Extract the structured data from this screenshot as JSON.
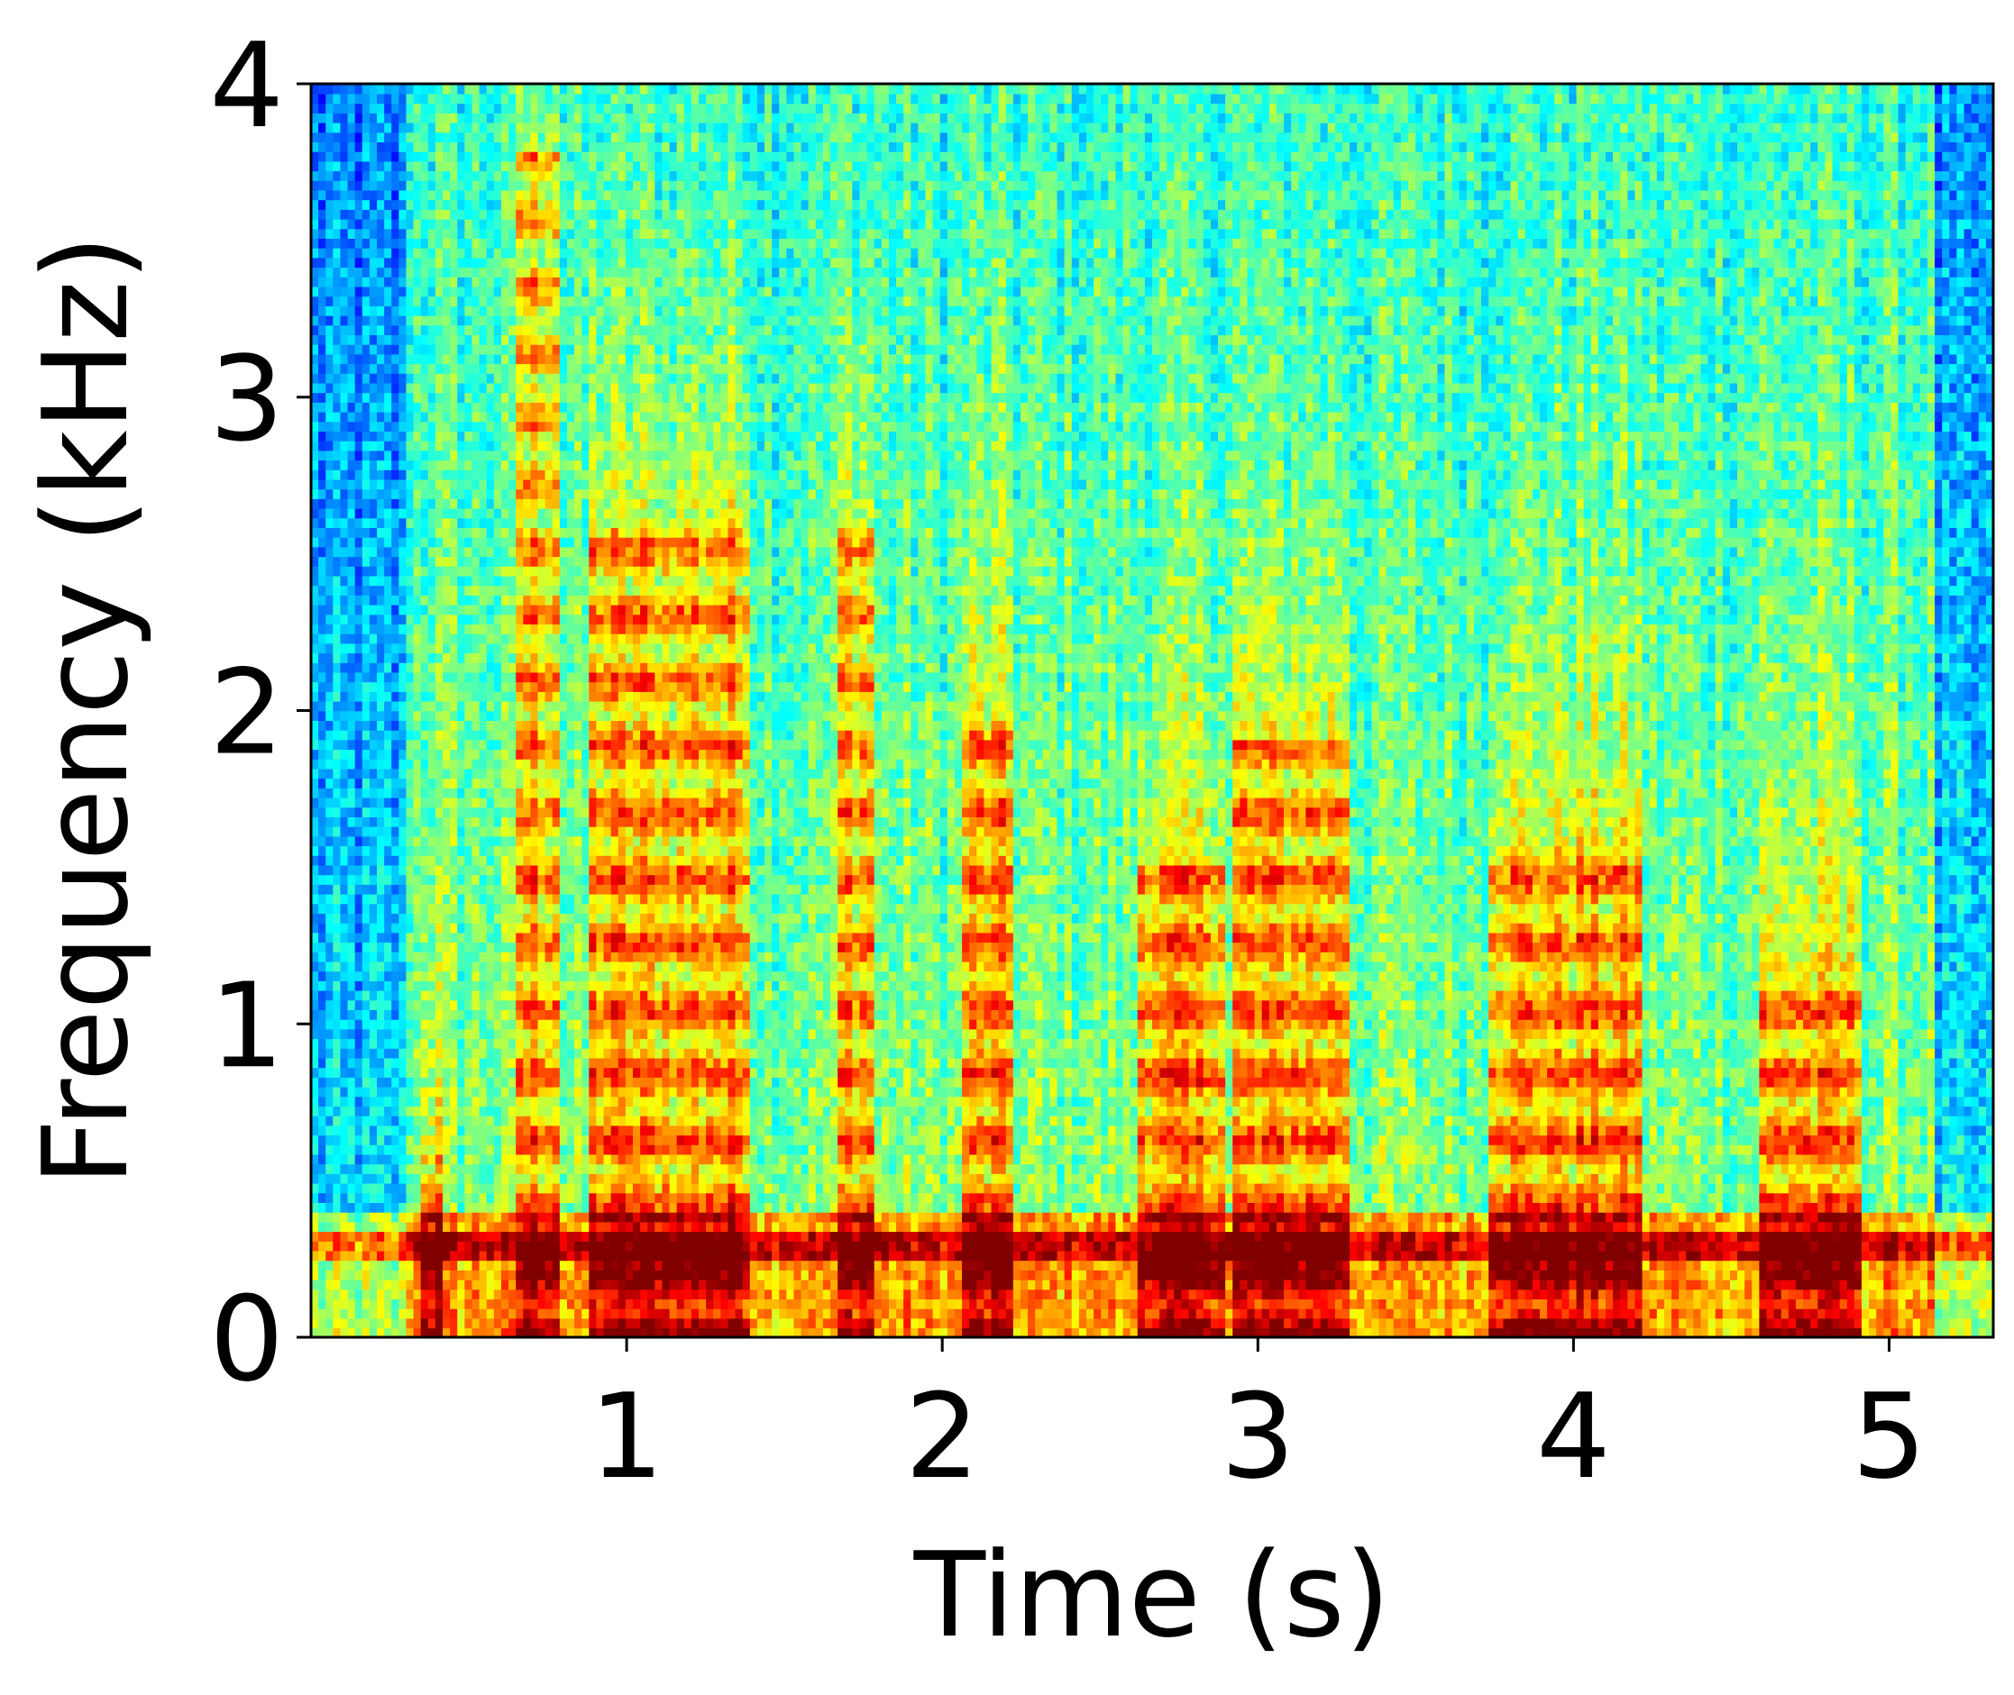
{
  "chart_data": {
    "type": "heatmap",
    "subtype": "spectrogram",
    "xlabel": "Time (s)",
    "ylabel": "Frequency (kHz)",
    "xlim": [
      0,
      5.33
    ],
    "ylim": [
      0,
      4
    ],
    "xticks": [
      1,
      2,
      3,
      4,
      5
    ],
    "yticks": [
      0,
      1,
      2,
      3,
      4
    ],
    "colormap": "jet",
    "grid": false,
    "legend": "none",
    "harmonic_band_khz": 0.3,
    "high_energy_segments": [
      {
        "start": 0.35,
        "end": 0.42,
        "max_khz": 0.6
      },
      {
        "start": 0.66,
        "end": 0.78,
        "max_khz": 3.8
      },
      {
        "start": 0.88,
        "end": 1.4,
        "max_khz": 2.6
      },
      {
        "start": 1.68,
        "end": 1.78,
        "max_khz": 2.6
      },
      {
        "start": 2.06,
        "end": 2.22,
        "max_khz": 2.0
      },
      {
        "start": 2.62,
        "end": 2.9,
        "max_khz": 1.5
      },
      {
        "start": 2.92,
        "end": 3.3,
        "max_khz": 1.9
      },
      {
        "start": 3.72,
        "end": 4.22,
        "max_khz": 1.6
      },
      {
        "start": 4.6,
        "end": 4.92,
        "max_khz": 1.2
      }
    ]
  }
}
